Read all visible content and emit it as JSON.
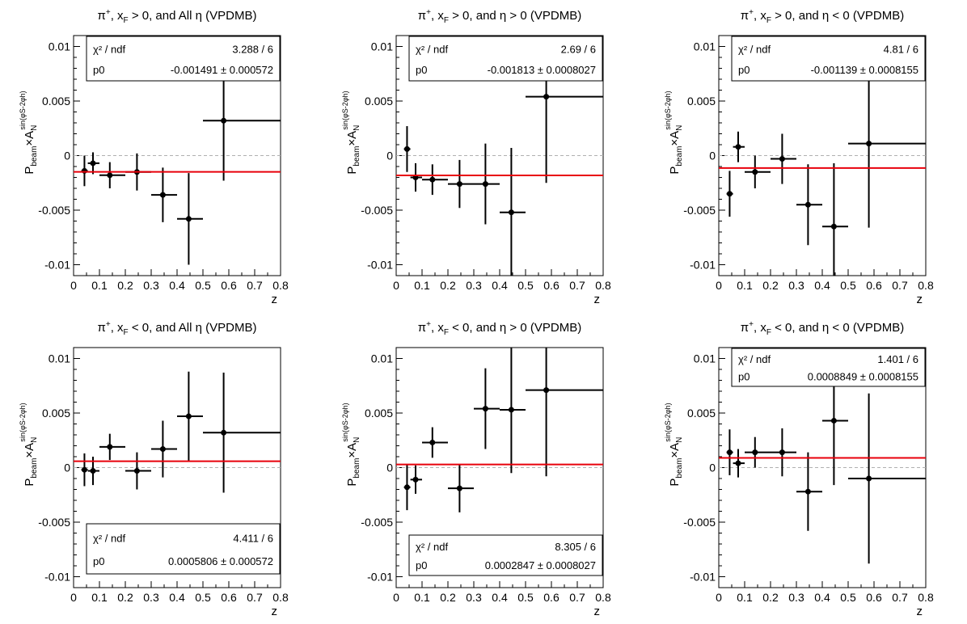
{
  "chart_data": [
    {
      "type": "scatter",
      "title": "π⁺, x_F > 0, and All η (VPDMB)",
      "title_parts": {
        "pre": "π",
        "sup": "+",
        "mid": ", x",
        "sub": "F",
        "post": " > 0, and All η (VPDMB)"
      },
      "xlabel": "z",
      "ylabel": "P_beam×A_N^sin(φ_S-2φ_h)",
      "xlim": [
        0,
        0.8
      ],
      "ylim": [
        -0.011,
        0.011
      ],
      "x_ticks": [
        "0",
        "0.1",
        "0.2",
        "0.3",
        "0.4",
        "0.5",
        "0.6",
        "0.7",
        "0.8"
      ],
      "y_ticks": [
        "0.01",
        "0.005",
        "0",
        "-0.005",
        "-0.01"
      ],
      "stats": {
        "chi2_label": "χ² / ndf",
        "chi2": "3.288 / 6",
        "p0_label": "p0",
        "p0": "-0.001491 ± 0.000572",
        "position": "top-right"
      },
      "fit_value": -0.001491,
      "points": [
        {
          "x": 0.042,
          "y": -0.0014,
          "xlo": 0.03,
          "xhi": 0.055,
          "yerr": 0.0014
        },
        {
          "x": 0.075,
          "y": -0.0007,
          "xlo": 0.055,
          "xhi": 0.1,
          "yerr": 0.001
        },
        {
          "x": 0.14,
          "y": -0.0018,
          "xlo": 0.1,
          "xhi": 0.2,
          "yerr": 0.0012
        },
        {
          "x": 0.245,
          "y": -0.0015,
          "xlo": 0.2,
          "xhi": 0.3,
          "yerr": 0.0017
        },
        {
          "x": 0.345,
          "y": -0.0036,
          "xlo": 0.3,
          "xhi": 0.4,
          "yerr": 0.0025
        },
        {
          "x": 0.445,
          "y": -0.0058,
          "xlo": 0.4,
          "xhi": 0.5,
          "yerr": 0.0042
        },
        {
          "x": 0.58,
          "y": 0.0032,
          "xlo": 0.5,
          "xhi": 0.8,
          "yerr": 0.0055
        }
      ]
    },
    {
      "type": "scatter",
      "title": "π⁺, x_F > 0, and η > 0 (VPDMB)",
      "title_parts": {
        "pre": "π",
        "sup": "+",
        "mid": ", x",
        "sub": "F",
        "post": " > 0, and η > 0 (VPDMB)"
      },
      "xlabel": "z",
      "ylabel": "P_beam×A_N^sin(φ_S-2φ_h)",
      "xlim": [
        0,
        0.8
      ],
      "ylim": [
        -0.011,
        0.011
      ],
      "x_ticks": [
        "0",
        "0.1",
        "0.2",
        "0.3",
        "0.4",
        "0.5",
        "0.6",
        "0.7",
        "0.8"
      ],
      "y_ticks": [
        "0.01",
        "0.005",
        "0",
        "-0.005",
        "-0.01"
      ],
      "stats": {
        "chi2_label": "χ² / ndf",
        "chi2": "2.69 / 6",
        "p0_label": "p0",
        "p0": "-0.001813 ± 0.0008027",
        "position": "top-right"
      },
      "fit_value": -0.001813,
      "points": [
        {
          "x": 0.042,
          "y": 0.0006,
          "xlo": 0.03,
          "xhi": 0.055,
          "yerr": 0.0021
        },
        {
          "x": 0.075,
          "y": -0.002,
          "xlo": 0.055,
          "xhi": 0.1,
          "yerr": 0.0013
        },
        {
          "x": 0.14,
          "y": -0.0022,
          "xlo": 0.1,
          "xhi": 0.2,
          "yerr": 0.0014
        },
        {
          "x": 0.245,
          "y": -0.0026,
          "xlo": 0.2,
          "xhi": 0.3,
          "yerr": 0.0022
        },
        {
          "x": 0.345,
          "y": -0.0026,
          "xlo": 0.3,
          "xhi": 0.4,
          "yerr": 0.0037
        },
        {
          "x": 0.445,
          "y": -0.0052,
          "xlo": 0.4,
          "xhi": 0.5,
          "yerr": 0.0059
        },
        {
          "x": 0.58,
          "y": 0.0054,
          "xlo": 0.5,
          "xhi": 0.8,
          "yerr": 0.0079
        }
      ]
    },
    {
      "type": "scatter",
      "title": "π⁺, x_F > 0, and η < 0 (VPDMB)",
      "title_parts": {
        "pre": "π",
        "sup": "+",
        "mid": ", x",
        "sub": "F",
        "post": " > 0, and η < 0 (VPDMB)"
      },
      "xlabel": "z",
      "ylabel": "P_beam×A_N^sin(φ_S-2φ_h)",
      "xlim": [
        0,
        0.8
      ],
      "ylim": [
        -0.011,
        0.011
      ],
      "x_ticks": [
        "0",
        "0.1",
        "0.2",
        "0.3",
        "0.4",
        "0.5",
        "0.6",
        "0.7",
        "0.8"
      ],
      "y_ticks": [
        "0.01",
        "0.005",
        "0",
        "-0.005",
        "-0.01"
      ],
      "stats": {
        "chi2_label": "χ² / ndf",
        "chi2": "4.81 / 6",
        "p0_label": "p0",
        "p0": "-0.001139 ± 0.0008155",
        "position": "top-right"
      },
      "fit_value": -0.001139,
      "points": [
        {
          "x": 0.042,
          "y": -0.0035,
          "xlo": 0.03,
          "xhi": 0.055,
          "yerr": 0.0021
        },
        {
          "x": 0.075,
          "y": 0.0008,
          "xlo": 0.055,
          "xhi": 0.1,
          "yerr": 0.0014
        },
        {
          "x": 0.14,
          "y": -0.0015,
          "xlo": 0.1,
          "xhi": 0.2,
          "yerr": 0.0015
        },
        {
          "x": 0.245,
          "y": -0.0003,
          "xlo": 0.2,
          "xhi": 0.3,
          "yerr": 0.0023
        },
        {
          "x": 0.345,
          "y": -0.0045,
          "xlo": 0.3,
          "xhi": 0.4,
          "yerr": 0.0037
        },
        {
          "x": 0.445,
          "y": -0.0065,
          "xlo": 0.4,
          "xhi": 0.5,
          "yerr": 0.0058
        },
        {
          "x": 0.58,
          "y": 0.0011,
          "xlo": 0.5,
          "xhi": 0.8,
          "yerr": 0.0077
        }
      ]
    },
    {
      "type": "scatter",
      "title": "π⁺, x_F < 0, and All η (VPDMB)",
      "title_parts": {
        "pre": "π",
        "sup": "+",
        "mid": ", x",
        "sub": "F",
        "post": " < 0, and All η (VPDMB)"
      },
      "xlabel": "z",
      "ylabel": "P_beam×A_N^sin(φ_S-2φ_h)",
      "xlim": [
        0,
        0.8
      ],
      "ylim": [
        -0.011,
        0.011
      ],
      "x_ticks": [
        "0",
        "0.1",
        "0.2",
        "0.3",
        "0.4",
        "0.5",
        "0.6",
        "0.7",
        "0.8"
      ],
      "y_ticks": [
        "0.01",
        "0.005",
        "0",
        "-0.005",
        "-0.01"
      ],
      "stats": {
        "chi2_label": "χ² / ndf",
        "chi2": "4.411 / 6",
        "p0_label": "p0",
        "p0": "0.0005806 ± 0.000572",
        "position": "bottom-left"
      },
      "fit_value": 0.0005806,
      "points": [
        {
          "x": 0.042,
          "y": -0.0002,
          "xlo": 0.03,
          "xhi": 0.055,
          "yerr": 0.0015
        },
        {
          "x": 0.075,
          "y": -0.0003,
          "xlo": 0.055,
          "xhi": 0.1,
          "yerr": 0.0013
        },
        {
          "x": 0.14,
          "y": 0.0019,
          "xlo": 0.1,
          "xhi": 0.2,
          "yerr": 0.0012
        },
        {
          "x": 0.245,
          "y": -0.0003,
          "xlo": 0.2,
          "xhi": 0.3,
          "yerr": 0.0017
        },
        {
          "x": 0.345,
          "y": 0.0017,
          "xlo": 0.3,
          "xhi": 0.4,
          "yerr": 0.0026
        },
        {
          "x": 0.445,
          "y": 0.0047,
          "xlo": 0.4,
          "xhi": 0.5,
          "yerr": 0.0041
        },
        {
          "x": 0.58,
          "y": 0.0032,
          "xlo": 0.5,
          "xhi": 0.8,
          "yerr": 0.0055
        }
      ]
    },
    {
      "type": "scatter",
      "title": "π⁺, x_F < 0, and η > 0 (VPDMB)",
      "title_parts": {
        "pre": "π",
        "sup": "+",
        "mid": ", x",
        "sub": "F",
        "post": " < 0, and η > 0 (VPDMB)"
      },
      "xlabel": "z",
      "ylabel": "P_beam×A_N^sin(φ_S-2φ_h)",
      "xlim": [
        0,
        0.8
      ],
      "ylim": [
        -0.011,
        0.011
      ],
      "x_ticks": [
        "0",
        "0.1",
        "0.2",
        "0.3",
        "0.4",
        "0.5",
        "0.6",
        "0.7",
        "0.8"
      ],
      "y_ticks": [
        "0.01",
        "0.005",
        "0",
        "-0.005",
        "-0.01"
      ],
      "stats": {
        "chi2_label": "χ² / ndf",
        "chi2": "8.305 / 6",
        "p0_label": "p0",
        "p0": "0.0002847 ± 0.0008027",
        "position": "bottom-left"
      },
      "fit_value": 0.0002847,
      "points": [
        {
          "x": 0.042,
          "y": -0.0018,
          "xlo": 0.03,
          "xhi": 0.055,
          "yerr": 0.0021
        },
        {
          "x": 0.075,
          "y": -0.0011,
          "xlo": 0.055,
          "xhi": 0.1,
          "yerr": 0.0013
        },
        {
          "x": 0.14,
          "y": 0.0023,
          "xlo": 0.1,
          "xhi": 0.2,
          "yerr": 0.0014
        },
        {
          "x": 0.245,
          "y": -0.0019,
          "xlo": 0.2,
          "xhi": 0.3,
          "yerr": 0.0022
        },
        {
          "x": 0.345,
          "y": 0.0054,
          "xlo": 0.3,
          "xhi": 0.4,
          "yerr": 0.0037
        },
        {
          "x": 0.445,
          "y": 0.0053,
          "xlo": 0.4,
          "xhi": 0.5,
          "yerr": 0.0058
        },
        {
          "x": 0.58,
          "y": 0.0071,
          "xlo": 0.5,
          "xhi": 0.8,
          "yerr": 0.0079
        }
      ]
    },
    {
      "type": "scatter",
      "title": "π⁺, x_F < 0, and η < 0 (VPDMB)",
      "title_parts": {
        "pre": "π",
        "sup": "+",
        "mid": ", x",
        "sub": "F",
        "post": " < 0, and η < 0 (VPDMB)"
      },
      "xlabel": "z",
      "ylabel": "P_beam×A_N^sin(φ_S-2φ_h)",
      "xlim": [
        0,
        0.8
      ],
      "ylim": [
        -0.011,
        0.011
      ],
      "x_ticks": [
        "0",
        "0.1",
        "0.2",
        "0.3",
        "0.4",
        "0.5",
        "0.6",
        "0.7",
        "0.8"
      ],
      "y_ticks": [
        "0.01",
        "0.005",
        "0",
        "-0.005",
        "-0.01"
      ],
      "stats": {
        "chi2_label": "χ² / ndf",
        "chi2": "1.401 / 6",
        "p0_label": "p0",
        "p0": "0.0008849 ± 0.0008155",
        "position": "top-left"
      },
      "fit_value": 0.0008849,
      "points": [
        {
          "x": 0.042,
          "y": 0.0014,
          "xlo": 0.03,
          "xhi": 0.055,
          "yerr": 0.0021
        },
        {
          "x": 0.075,
          "y": 0.0004,
          "xlo": 0.055,
          "xhi": 0.1,
          "yerr": 0.0013
        },
        {
          "x": 0.14,
          "y": 0.0014,
          "xlo": 0.1,
          "xhi": 0.2,
          "yerr": 0.0014
        },
        {
          "x": 0.245,
          "y": 0.0014,
          "xlo": 0.2,
          "xhi": 0.3,
          "yerr": 0.0022
        },
        {
          "x": 0.345,
          "y": -0.0022,
          "xlo": 0.3,
          "xhi": 0.4,
          "yerr": 0.0036
        },
        {
          "x": 0.445,
          "y": 0.0043,
          "xlo": 0.4,
          "xhi": 0.5,
          "yerr": 0.0059
        },
        {
          "x": 0.58,
          "y": -0.001,
          "xlo": 0.5,
          "xhi": 0.8,
          "yerr": 0.0078
        }
      ]
    }
  ],
  "colors": {
    "fit_line": "#e8000b",
    "zero_line": "#b0b0b0",
    "marker": "#000000",
    "frame": "#000000"
  }
}
